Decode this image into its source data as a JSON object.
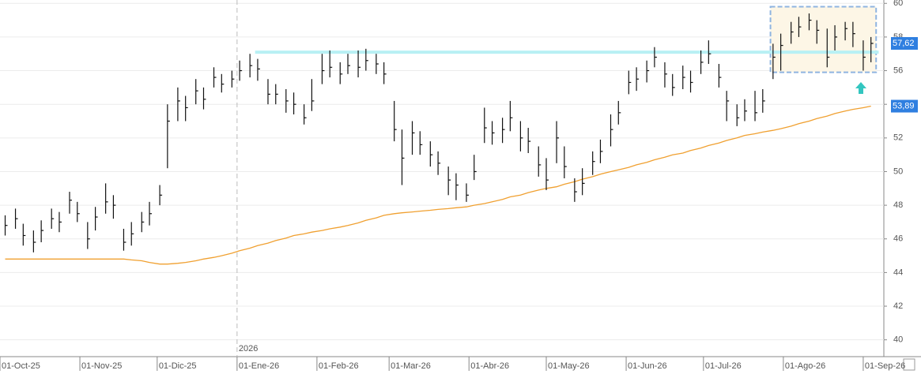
{
  "chart_data": {
    "type": "ohlc",
    "x": [
      "2025-10-03",
      "2025-10-07",
      "2025-10-10",
      "2025-10-14",
      "2025-10-17",
      "2025-10-21",
      "2025-10-24",
      "2025-10-28",
      "2025-10-31",
      "2025-11-04",
      "2025-11-07",
      "2025-11-11",
      "2025-11-14",
      "2025-11-18",
      "2025-11-21",
      "2025-11-25",
      "2025-11-28",
      "2025-12-02",
      "2025-12-05",
      "2025-12-09",
      "2025-12-12",
      "2025-12-16",
      "2025-12-19",
      "2025-12-23",
      "2025-12-26",
      "2025-12-30",
      "2026-01-02",
      "2026-01-06",
      "2026-01-09",
      "2026-01-13",
      "2026-01-16",
      "2026-01-20",
      "2026-01-23",
      "2026-01-27",
      "2026-01-30",
      "2026-02-03",
      "2026-02-06",
      "2026-02-10",
      "2026-02-13",
      "2026-02-17",
      "2026-02-20",
      "2026-02-24",
      "2026-02-27",
      "2026-03-03",
      "2026-03-06",
      "2026-03-10",
      "2026-03-13",
      "2026-03-17",
      "2026-03-20",
      "2026-03-24",
      "2026-03-27",
      "2026-03-31",
      "2026-04-03",
      "2026-04-07",
      "2026-04-10",
      "2026-04-14",
      "2026-04-17",
      "2026-04-21",
      "2026-04-24",
      "2026-04-28",
      "2026-05-01",
      "2026-05-05",
      "2026-05-08",
      "2026-05-12",
      "2026-05-15",
      "2026-05-19",
      "2026-05-22",
      "2026-05-26",
      "2026-05-29",
      "2026-06-02",
      "2026-06-05",
      "2026-06-09",
      "2026-06-12",
      "2026-06-16",
      "2026-06-19",
      "2026-06-23",
      "2026-06-26",
      "2026-06-30",
      "2026-07-03",
      "2026-07-07",
      "2026-07-10",
      "2026-07-14",
      "2026-07-17",
      "2026-07-21",
      "2026-07-24",
      "2026-07-28",
      "2026-07-31",
      "2026-08-04",
      "2026-08-07",
      "2026-08-11",
      "2026-08-14",
      "2026-08-18",
      "2026-08-21",
      "2026-08-25",
      "2026-08-28",
      "2026-09-01",
      "2026-09-04"
    ],
    "high": [
      47.4,
      47.8,
      46.9,
      46.5,
      47.1,
      47.8,
      47.6,
      48.8,
      48.2,
      47.0,
      47.9,
      49.3,
      48.6,
      46.6,
      47.0,
      47.6,
      48.2,
      49.2,
      54.0,
      55.0,
      54.5,
      55.5,
      55.0,
      56.2,
      55.8,
      56.0,
      56.6,
      57.0,
      56.7,
      55.5,
      55.2,
      54.9,
      54.7,
      54.0,
      55.5,
      57.0,
      57.2,
      56.5,
      57.0,
      57.2,
      57.3,
      57.0,
      56.5,
      54.2,
      52.5,
      53.0,
      52.4,
      51.8,
      51.2,
      50.3,
      49.9,
      49.3,
      51.0,
      53.8,
      53.0,
      53.2,
      54.2,
      53.0,
      52.6,
      51.5,
      50.8,
      53.0,
      51.5,
      49.6,
      50.2,
      51.2,
      51.9,
      53.4,
      54.2,
      56.0,
      56.2,
      56.6,
      57.4,
      56.5,
      55.8,
      56.3,
      56.0,
      57.2,
      57.8,
      56.4,
      54.8,
      54.0,
      54.3,
      54.8,
      54.9,
      57.6,
      58.2,
      58.9,
      59.2,
      59.4,
      59.0,
      58.5,
      58.7,
      58.9,
      58.9,
      57.8,
      58.0
    ],
    "low": [
      46.2,
      46.6,
      45.6,
      45.2,
      45.8,
      46.6,
      46.4,
      47.5,
      47.0,
      45.4,
      46.5,
      47.5,
      47.2,
      45.3,
      45.6,
      46.4,
      46.8,
      48.0,
      50.2,
      53.0,
      53.0,
      54.0,
      53.7,
      55.0,
      54.7,
      55.0,
      55.4,
      55.6,
      55.4,
      54.0,
      54.0,
      53.5,
      53.4,
      52.8,
      53.6,
      55.2,
      55.6,
      55.2,
      55.8,
      55.6,
      56.0,
      55.8,
      55.2,
      51.8,
      49.2,
      51.0,
      51.0,
      50.3,
      49.8,
      48.6,
      48.3,
      48.2,
      49.5,
      51.7,
      51.6,
      51.7,
      52.4,
      51.2,
      51.1,
      49.7,
      48.9,
      50.5,
      49.6,
      48.2,
      48.6,
      49.8,
      50.5,
      51.5,
      52.8,
      54.6,
      54.8,
      55.3,
      56.2,
      55.0,
      54.5,
      54.9,
      54.7,
      55.8,
      56.4,
      55.0,
      53.0,
      52.7,
      53.0,
      53.0,
      53.5,
      55.5,
      56.0,
      57.6,
      58.0,
      58.4,
      57.6,
      56.2,
      57.2,
      57.8,
      57.4,
      56.0,
      56.5
    ],
    "close": [
      46.8,
      47.2,
      46.2,
      45.8,
      46.5,
      47.2,
      47.0,
      48.3,
      47.5,
      46.0,
      47.3,
      48.2,
      48.0,
      45.8,
      46.3,
      47.0,
      47.5,
      48.6,
      53.0,
      54.2,
      53.8,
      54.8,
      54.3,
      55.6,
      55.2,
      55.5,
      56.0,
      56.3,
      56.1,
      54.6,
      54.6,
      54.2,
      54.0,
      53.2,
      54.2,
      56.0,
      56.2,
      55.8,
      56.3,
      56.2,
      56.6,
      56.4,
      55.8,
      52.5,
      50.8,
      52.3,
      51.6,
      51.0,
      50.5,
      49.5,
      49.2,
      48.6,
      50.0,
      52.6,
      52.3,
      52.5,
      53.2,
      52.0,
      51.8,
      50.4,
      49.5,
      52.0,
      50.3,
      48.8,
      49.3,
      50.6,
      51.2,
      52.5,
      53.5,
      55.3,
      55.5,
      56.0,
      56.8,
      55.8,
      55.0,
      55.6,
      55.3,
      56.5,
      57.0,
      55.6,
      54.2,
      53.2,
      53.6,
      53.5,
      54.2,
      56.8,
      57.5,
      58.3,
      58.6,
      59.0,
      58.4,
      56.8,
      58.0,
      58.5,
      58.2,
      56.8,
      57.62
    ],
    "color": "#111111",
    "moving_average": {
      "color": "#f0a030",
      "values": [
        44.8,
        44.8,
        44.8,
        44.8,
        44.8,
        44.8,
        44.8,
        44.8,
        44.8,
        44.8,
        44.8,
        44.8,
        44.8,
        44.8,
        44.75,
        44.7,
        44.6,
        44.5,
        44.5,
        44.55,
        44.6,
        44.7,
        44.8,
        44.9,
        45.0,
        45.15,
        45.3,
        45.45,
        45.6,
        45.75,
        45.9,
        46.05,
        46.2,
        46.3,
        46.4,
        46.5,
        46.6,
        46.7,
        46.8,
        46.95,
        47.1,
        47.25,
        47.4,
        47.5,
        47.55,
        47.6,
        47.65,
        47.7,
        47.75,
        47.8,
        47.85,
        47.9,
        48.0,
        48.1,
        48.2,
        48.35,
        48.5,
        48.6,
        48.75,
        48.9,
        49.0,
        49.1,
        49.25,
        49.4,
        49.55,
        49.7,
        49.85,
        50.0,
        50.1,
        50.25,
        50.4,
        50.55,
        50.7,
        50.85,
        51.0,
        51.1,
        51.25,
        51.4,
        51.55,
        51.7,
        51.85,
        52.0,
        52.15,
        52.25,
        52.35,
        52.45,
        52.55,
        52.7,
        52.85,
        53.0,
        53.15,
        53.3,
        53.45,
        53.6,
        53.7,
        53.8,
        53.89
      ]
    },
    "price_labels": [
      {
        "value": 57.62,
        "label": "57,62",
        "color": "#2f7fe0"
      },
      {
        "value": 53.89,
        "label": "53,89",
        "color": "#2f7fe0"
      }
    ],
    "resistance": {
      "value": 57.1,
      "from": "2026-01-08",
      "to": "2026-09-07",
      "color": "#b8f0f4"
    },
    "highlight_box": {
      "from": "2026-07-27",
      "to": "2026-09-06",
      "ylim": [
        55.9,
        59.8
      ],
      "color": "#8fb4e0"
    },
    "year_marker": {
      "date": "2026-01-01",
      "label": "2026"
    },
    "xlim": [
      "2025-10-01",
      "2026-09-09"
    ],
    "xticks": [
      {
        "value": "2025-10-01",
        "label": "01-Oct-25"
      },
      {
        "value": "2025-11-01",
        "label": "01-Nov-25"
      },
      {
        "value": "2025-12-01",
        "label": "01-Dic-25"
      },
      {
        "value": "2026-01-01",
        "label": "01-Ene-26"
      },
      {
        "value": "2026-02-01",
        "label": "01-Feb-26"
      },
      {
        "value": "2026-03-01",
        "label": "01-Mar-26"
      },
      {
        "value": "2026-04-01",
        "label": "01-Abr-26"
      },
      {
        "value": "2026-05-01",
        "label": "01-May-26"
      },
      {
        "value": "2026-06-01",
        "label": "01-Jun-26"
      },
      {
        "value": "2026-07-01",
        "label": "01-Jul-26"
      },
      {
        "value": "2026-08-01",
        "label": "01-Ago-26"
      },
      {
        "value": "2026-09-01",
        "label": "01-Sep-26"
      }
    ],
    "ylim": [
      39,
      60.2
    ],
    "yticks": [
      40,
      42,
      44,
      46,
      48,
      50,
      52,
      54,
      56,
      58,
      60
    ],
    "grid": true
  }
}
